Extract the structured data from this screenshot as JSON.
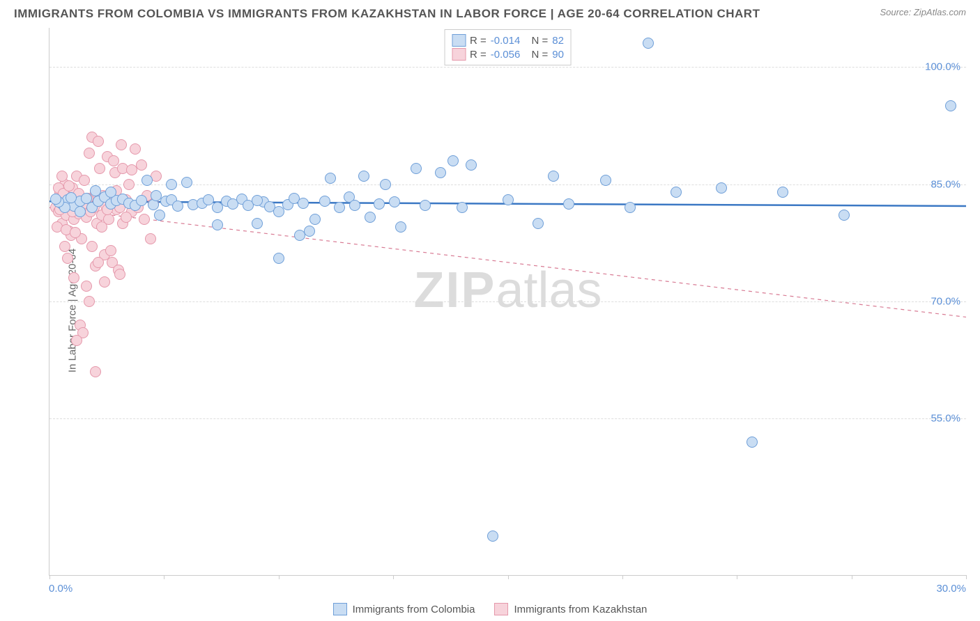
{
  "header": {
    "title": "IMMIGRANTS FROM COLOMBIA VS IMMIGRANTS FROM KAZAKHSTAN IN LABOR FORCE | AGE 20-64 CORRELATION CHART",
    "source": "Source: ZipAtlas.com"
  },
  "chart": {
    "type": "scatter",
    "y_axis_label": "In Labor Force | Age 20-64",
    "xlim": [
      0,
      30
    ],
    "ylim": [
      35,
      105
    ],
    "y_ticks": [
      55.0,
      70.0,
      85.0,
      100.0
    ],
    "y_tick_labels": [
      "55.0%",
      "70.0%",
      "85.0%",
      "100.0%"
    ],
    "x_tick_positions": [
      0,
      3.75,
      7.5,
      11.25,
      15,
      18.75,
      22.5,
      26.25,
      30
    ],
    "x_min_label": "0.0%",
    "x_max_label": "30.0%",
    "background_color": "#ffffff",
    "grid_color": "#dddddd",
    "axis_color": "#cccccc",
    "tick_label_color": "#5b8fd6",
    "marker_radius": 8,
    "marker_stroke_width": 1.2,
    "series": [
      {
        "name": "Immigrants from Colombia",
        "fill": "#c9ddf3",
        "stroke": "#6f9fd8",
        "trend_color": "#3b78c4",
        "trend_dash": "none",
        "trend_width": 2.5,
        "r": "-0.014",
        "n": "82",
        "trend": {
          "x1": 0,
          "y1": 82.8,
          "x2": 30,
          "y2": 82.2
        },
        "points": [
          [
            0.4,
            82.5
          ],
          [
            0.6,
            83
          ],
          [
            0.8,
            82.2
          ],
          [
            1.0,
            82.8
          ],
          [
            1.2,
            83.2
          ],
          [
            1.4,
            82.0
          ],
          [
            1.6,
            82.8
          ],
          [
            1.8,
            83.4
          ],
          [
            2.0,
            82.5
          ],
          [
            2.2,
            82.9
          ],
          [
            2.4,
            83.1
          ],
          [
            2.6,
            82.6
          ],
          [
            2.8,
            82.3
          ],
          [
            3.0,
            82.9
          ],
          [
            3.2,
            85.5
          ],
          [
            3.4,
            82.4
          ],
          [
            3.6,
            81.0
          ],
          [
            3.8,
            82.8
          ],
          [
            4.0,
            83.0
          ],
          [
            4.2,
            82.2
          ],
          [
            4.5,
            85.2
          ],
          [
            4.7,
            82.4
          ],
          [
            5.0,
            82.6
          ],
          [
            5.2,
            83.0
          ],
          [
            5.5,
            82.0
          ],
          [
            5.8,
            82.8
          ],
          [
            6.0,
            82.5
          ],
          [
            6.3,
            83.1
          ],
          [
            6.5,
            82.3
          ],
          [
            6.8,
            80.0
          ],
          [
            7.0,
            82.7
          ],
          [
            7.2,
            82.1
          ],
          [
            7.5,
            81.5
          ],
          [
            7.8,
            82.4
          ],
          [
            8.0,
            83.2
          ],
          [
            8.3,
            82.6
          ],
          [
            8.5,
            79.0
          ],
          [
            8.7,
            80.5
          ],
          [
            9.0,
            82.8
          ],
          [
            9.2,
            85.8
          ],
          [
            9.5,
            82.0
          ],
          [
            9.8,
            83.4
          ],
          [
            10.0,
            82.3
          ],
          [
            10.3,
            86.0
          ],
          [
            10.5,
            80.8
          ],
          [
            10.8,
            82.5
          ],
          [
            11.0,
            85.0
          ],
          [
            11.3,
            82.7
          ],
          [
            11.5,
            79.5
          ],
          [
            12.0,
            87.0
          ],
          [
            12.3,
            82.3
          ],
          [
            12.8,
            86.5
          ],
          [
            13.2,
            88.0
          ],
          [
            13.5,
            82.0
          ],
          [
            13.8,
            87.5
          ],
          [
            14.5,
            40.0
          ],
          [
            15.0,
            83.0
          ],
          [
            16.0,
            80.0
          ],
          [
            16.5,
            86.0
          ],
          [
            17.0,
            82.5
          ],
          [
            18.2,
            85.5
          ],
          [
            19.0,
            82.0
          ],
          [
            19.6,
            103.0
          ],
          [
            20.5,
            84.0
          ],
          [
            22.0,
            84.5
          ],
          [
            23.0,
            52.0
          ],
          [
            24.0,
            84.0
          ],
          [
            26.0,
            81.0
          ],
          [
            29.5,
            95.0
          ],
          [
            7.5,
            75.5
          ],
          [
            6.8,
            82.9
          ],
          [
            5.5,
            79.8
          ],
          [
            4.0,
            85.0
          ],
          [
            3.5,
            83.5
          ],
          [
            2.0,
            84.0
          ],
          [
            1.5,
            84.2
          ],
          [
            1.0,
            81.5
          ],
          [
            0.7,
            83.3
          ],
          [
            0.5,
            82.0
          ],
          [
            0.3,
            82.7
          ],
          [
            0.2,
            83.1
          ],
          [
            8.2,
            78.5
          ]
        ]
      },
      {
        "name": "Immigrants from Kazakhstan",
        "fill": "#f7d3db",
        "stroke": "#e598ab",
        "trend_color": "#d87a93",
        "trend_dash": "5,5",
        "trend_width": 1.2,
        "r": "-0.056",
        "n": "90",
        "trend": {
          "x1": 0,
          "y1": 82.0,
          "x2": 30,
          "y2": 68.0
        },
        "points": [
          [
            0.2,
            82.0
          ],
          [
            0.25,
            83.0
          ],
          [
            0.3,
            81.5
          ],
          [
            0.35,
            84.0
          ],
          [
            0.4,
            80.0
          ],
          [
            0.45,
            82.5
          ],
          [
            0.5,
            85.0
          ],
          [
            0.55,
            81.0
          ],
          [
            0.6,
            83.5
          ],
          [
            0.65,
            79.0
          ],
          [
            0.7,
            82.0
          ],
          [
            0.75,
            84.5
          ],
          [
            0.8,
            80.5
          ],
          [
            0.85,
            82.8
          ],
          [
            0.9,
            86.0
          ],
          [
            0.95,
            81.2
          ],
          [
            1.0,
            83.0
          ],
          [
            1.05,
            78.0
          ],
          [
            1.1,
            82.5
          ],
          [
            1.15,
            85.5
          ],
          [
            1.2,
            80.8
          ],
          [
            1.25,
            83.2
          ],
          [
            1.3,
            89.0
          ],
          [
            1.35,
            81.5
          ],
          [
            1.4,
            77.0
          ],
          [
            1.45,
            82.0
          ],
          [
            1.5,
            84.0
          ],
          [
            1.55,
            80.0
          ],
          [
            1.6,
            82.8
          ],
          [
            1.65,
            87.0
          ],
          [
            1.7,
            81.0
          ],
          [
            1.75,
            83.5
          ],
          [
            1.8,
            76.0
          ],
          [
            1.85,
            82.2
          ],
          [
            1.9,
            88.5
          ],
          [
            1.95,
            80.5
          ],
          [
            2.0,
            83.0
          ],
          [
            2.05,
            75.0
          ],
          [
            2.1,
            82.5
          ],
          [
            2.15,
            86.5
          ],
          [
            2.2,
            81.8
          ],
          [
            2.25,
            74.0
          ],
          [
            2.3,
            82.0
          ],
          [
            2.35,
            90.0
          ],
          [
            2.4,
            80.0
          ],
          [
            2.5,
            83.0
          ],
          [
            2.6,
            85.0
          ],
          [
            2.7,
            81.5
          ],
          [
            2.8,
            89.5
          ],
          [
            2.9,
            82.0
          ],
          [
            3.0,
            87.5
          ],
          [
            3.1,
            80.5
          ],
          [
            3.2,
            83.5
          ],
          [
            3.3,
            78.0
          ],
          [
            3.4,
            82.5
          ],
          [
            3.5,
            86.0
          ],
          [
            0.8,
            73.0
          ],
          [
            1.2,
            72.0
          ],
          [
            1.5,
            74.5
          ],
          [
            1.0,
            67.0
          ],
          [
            1.1,
            66.0
          ],
          [
            0.9,
            65.0
          ],
          [
            1.3,
            70.0
          ],
          [
            1.6,
            75.0
          ],
          [
            1.8,
            72.5
          ],
          [
            2.0,
            76.5
          ],
          [
            2.3,
            73.5
          ],
          [
            0.5,
            77.0
          ],
          [
            0.6,
            75.5
          ],
          [
            0.7,
            78.5
          ],
          [
            1.4,
            91.0
          ],
          [
            1.6,
            90.5
          ],
          [
            2.1,
            88.0
          ],
          [
            2.4,
            87.0
          ],
          [
            0.4,
            86.0
          ],
          [
            0.3,
            84.5
          ],
          [
            0.25,
            79.5
          ],
          [
            1.5,
            61.0
          ],
          [
            1.7,
            79.5
          ],
          [
            1.9,
            81.8
          ],
          [
            2.2,
            84.2
          ],
          [
            2.5,
            80.8
          ],
          [
            2.7,
            86.8
          ],
          [
            0.35,
            81.8
          ],
          [
            0.45,
            83.8
          ],
          [
            0.55,
            79.2
          ],
          [
            0.65,
            84.8
          ],
          [
            0.75,
            81.5
          ],
          [
            0.85,
            78.8
          ],
          [
            0.95,
            83.8
          ]
        ]
      }
    ],
    "watermark": {
      "zip": "ZIP",
      "atlas": "atlas"
    },
    "legend_labels": {
      "r": "R =",
      "n": "N ="
    }
  }
}
